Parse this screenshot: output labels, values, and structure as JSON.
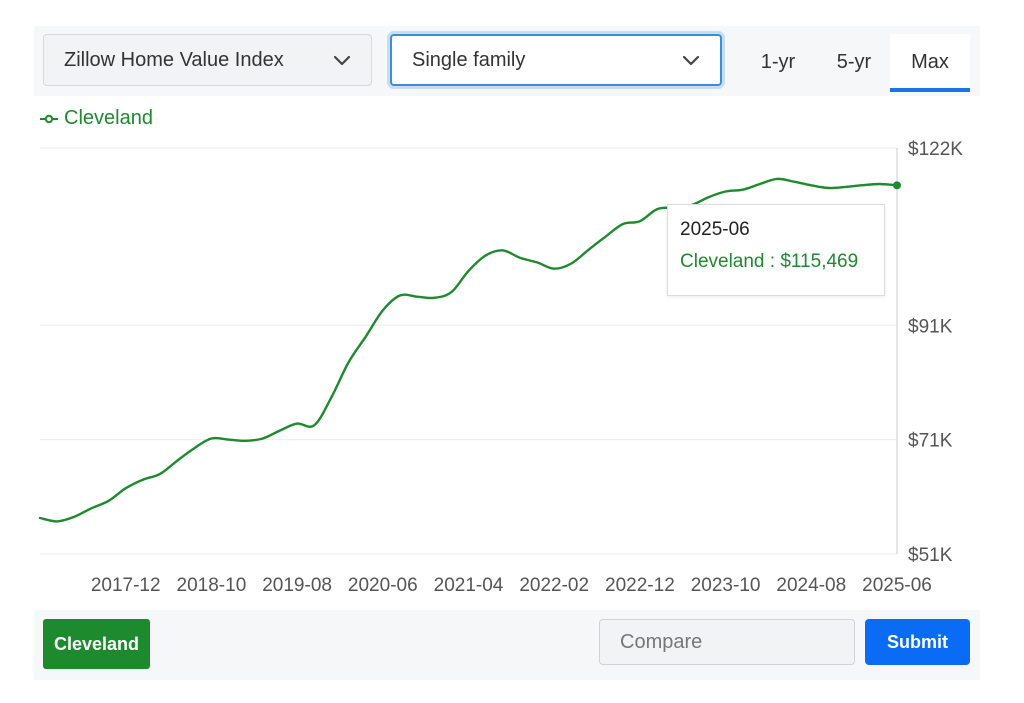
{
  "controls": {
    "metric_select": "Zillow Home Value Index",
    "type_select": "Single family",
    "ranges": [
      "1-yr",
      "5-yr",
      "Max"
    ],
    "active_range": "Max"
  },
  "legend": {
    "label": "Cleveland",
    "color": "#1e8a2e"
  },
  "tooltip": {
    "date": "2025-06",
    "text": "Cleveland : $115,469"
  },
  "footer": {
    "region_chip": "Cleveland",
    "compare_placeholder": "Compare",
    "submit_label": "Submit"
  },
  "chart_data": {
    "type": "line",
    "title": "",
    "xlabel": "",
    "ylabel": "",
    "x_tick_labels": [
      "2017-12",
      "2018-10",
      "2019-08",
      "2020-06",
      "2021-04",
      "2022-02",
      "2022-12",
      "2023-10",
      "2024-08",
      "2025-06"
    ],
    "y_tick_labels": [
      "$122K",
      "$91K",
      "$71K",
      "$51K"
    ],
    "y_ticks": [
      122000,
      91000,
      71000,
      51000
    ],
    "ylim": [
      51000,
      122000
    ],
    "xlim": [
      "2017-02",
      "2025-06"
    ],
    "grid": true,
    "legend_position": "top-left",
    "series": [
      {
        "name": "Cleveland",
        "color": "#1e8a2e",
        "x": [
          "2017-02",
          "2017-04",
          "2017-06",
          "2017-08",
          "2017-10",
          "2017-12",
          "2018-02",
          "2018-04",
          "2018-06",
          "2018-08",
          "2018-10",
          "2018-12",
          "2019-02",
          "2019-04",
          "2019-06",
          "2019-08",
          "2019-10",
          "2019-12",
          "2020-02",
          "2020-04",
          "2020-06",
          "2020-08",
          "2020-10",
          "2020-12",
          "2021-02",
          "2021-04",
          "2021-06",
          "2021-08",
          "2021-10",
          "2021-12",
          "2022-02",
          "2022-04",
          "2022-06",
          "2022-08",
          "2022-10",
          "2022-12",
          "2023-02",
          "2023-04",
          "2023-06",
          "2023-08",
          "2023-10",
          "2023-12",
          "2024-02",
          "2024-04",
          "2024-06",
          "2024-08",
          "2024-10",
          "2024-12",
          "2025-02",
          "2025-04",
          "2025-06"
        ],
        "values": [
          57300,
          56700,
          57500,
          59000,
          60300,
          62500,
          64000,
          65000,
          67300,
          69500,
          71200,
          71000,
          70800,
          71200,
          72600,
          73800,
          73500,
          78400,
          84500,
          89000,
          93600,
          96200,
          96000,
          95800,
          96800,
          100500,
          103200,
          104100,
          102800,
          102000,
          100900,
          101800,
          104200,
          106500,
          108700,
          109200,
          111300,
          111600,
          112000,
          113400,
          114400,
          114700,
          115700,
          116600,
          116100,
          115469,
          115000,
          115200,
          115500,
          115700,
          115469
        ]
      }
    ]
  }
}
